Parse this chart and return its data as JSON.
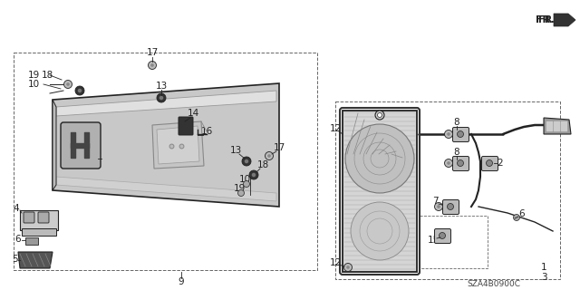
{
  "background_color": "#ffffff",
  "diagram_code": "SZA4B0900C",
  "fr_label": "FR.",
  "line_color": "#222222",
  "gray_fill": "#d8d8d8",
  "dark_fill": "#555555",
  "dashed_color": "#666666"
}
